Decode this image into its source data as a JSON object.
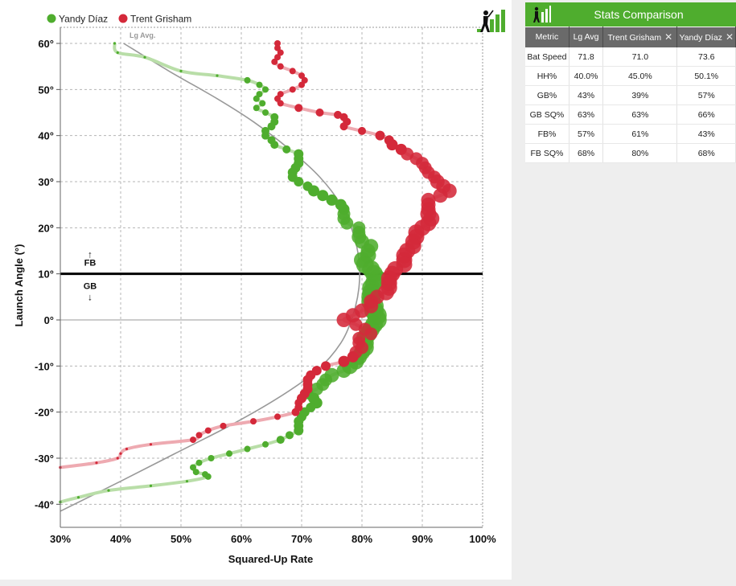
{
  "chart_data": {
    "type": "scatter",
    "title": "",
    "xlabel": "Squared-Up Rate",
    "ylabel": "Launch Angle (°)",
    "xlim": [
      30,
      100
    ],
    "ylim": [
      -45,
      60
    ],
    "x_ticks": [
      "30%",
      "40%",
      "50%",
      "60%",
      "70%",
      "80%",
      "90%",
      "100%"
    ],
    "y_ticks": [
      "60°",
      "50°",
      "40°",
      "30°",
      "20°",
      "10°",
      "0°",
      "-10°",
      "-20°",
      "-30°",
      "-40°"
    ],
    "grid": true,
    "legend_position": "top-left",
    "reference_line": {
      "y": 10,
      "above_label": "FB",
      "below_label": "GB",
      "up_arrow": "↑",
      "down_arrow": "↓"
    },
    "lg_avg": {
      "name": "Lg Avg.",
      "points": [
        [
          40.5,
          60
        ],
        [
          48,
          54
        ],
        [
          56,
          48
        ],
        [
          62,
          43
        ],
        [
          68,
          37
        ],
        [
          73,
          31
        ],
        [
          76.5,
          25
        ],
        [
          78.5,
          19
        ],
        [
          79.5,
          13
        ],
        [
          79.5,
          7
        ],
        [
          78.5,
          1
        ],
        [
          76.5,
          -5
        ],
        [
          72.5,
          -11
        ],
        [
          66,
          -17
        ],
        [
          58,
          -23
        ],
        [
          49,
          -29
        ],
        [
          40,
          -35
        ],
        [
          30,
          -41.5
        ]
      ]
    },
    "series": [
      {
        "name": "Yandy Díaz",
        "color": "#4fad2e",
        "light": "#b9dea8",
        "points": [
          [
            39,
            60,
            2
          ],
          [
            39.5,
            58,
            2
          ],
          [
            44,
            57,
            2
          ],
          [
            50,
            54,
            2
          ],
          [
            56,
            53,
            2
          ],
          [
            61,
            52,
            3
          ],
          [
            63,
            51,
            3
          ],
          [
            64,
            50,
            3
          ],
          [
            63,
            49,
            3
          ],
          [
            62.5,
            48,
            3
          ],
          [
            63.5,
            47,
            3
          ],
          [
            62.5,
            46,
            3
          ],
          [
            64,
            45,
            3
          ],
          [
            65.5,
            44,
            4
          ],
          [
            65.5,
            43,
            4
          ],
          [
            65,
            42,
            4
          ],
          [
            64,
            41,
            4
          ],
          [
            64,
            40,
            4
          ],
          [
            65,
            39,
            4
          ],
          [
            65.5,
            38,
            4
          ],
          [
            67.5,
            37,
            4
          ],
          [
            69.5,
            36,
            5
          ],
          [
            69.5,
            35,
            5
          ],
          [
            69.5,
            34,
            5
          ],
          [
            69,
            33,
            5
          ],
          [
            68.5,
            32,
            5
          ],
          [
            68.5,
            31,
            5
          ],
          [
            69.5,
            30,
            5
          ],
          [
            71,
            29,
            5
          ],
          [
            72,
            28,
            6
          ],
          [
            73.5,
            27,
            6
          ],
          [
            75,
            26,
            6
          ],
          [
            76.5,
            25,
            6
          ],
          [
            77,
            24,
            6
          ],
          [
            77,
            23,
            7
          ],
          [
            77,
            22,
            7
          ],
          [
            77.5,
            21,
            7
          ],
          [
            79.5,
            20,
            7
          ],
          [
            79.5,
            19,
            7
          ],
          [
            79.5,
            18,
            8
          ],
          [
            80,
            17,
            8
          ],
          [
            81.5,
            16,
            8
          ],
          [
            81,
            15,
            8
          ],
          [
            81,
            14,
            9
          ],
          [
            80,
            13,
            9
          ],
          [
            80.5,
            12,
            10
          ],
          [
            81.5,
            11,
            10
          ],
          [
            82,
            10,
            10
          ],
          [
            82.5,
            9,
            10
          ],
          [
            82,
            8,
            10
          ],
          [
            81.5,
            7,
            10
          ],
          [
            81.5,
            6,
            10
          ],
          [
            81.5,
            5,
            11
          ],
          [
            81.5,
            4,
            11
          ],
          [
            82,
            3,
            11
          ],
          [
            82,
            2,
            11
          ],
          [
            82.5,
            1,
            11
          ],
          [
            82.5,
            0,
            11
          ],
          [
            82,
            -1,
            10
          ],
          [
            81.5,
            -2,
            10
          ],
          [
            81,
            -3,
            10
          ],
          [
            80.5,
            -4,
            10
          ],
          [
            80.5,
            -5,
            10
          ],
          [
            80.5,
            -6,
            10
          ],
          [
            80,
            -7,
            9
          ],
          [
            79.5,
            -8,
            9
          ],
          [
            79,
            -9,
            9
          ],
          [
            78,
            -10,
            9
          ],
          [
            77,
            -11,
            8
          ],
          [
            75,
            -12,
            8
          ],
          [
            74,
            -13,
            7
          ],
          [
            73.5,
            -14,
            7
          ],
          [
            72.5,
            -15,
            7
          ],
          [
            71,
            -16,
            6
          ],
          [
            72,
            -17,
            6
          ],
          [
            72.5,
            -18,
            6
          ],
          [
            71.5,
            -19,
            5
          ],
          [
            70.5,
            -20,
            5
          ],
          [
            70,
            -21,
            5
          ],
          [
            69.5,
            -22,
            5
          ],
          [
            69.5,
            -23,
            5
          ],
          [
            69.5,
            -24,
            5
          ],
          [
            68,
            -25,
            4
          ],
          [
            66.5,
            -26,
            4
          ],
          [
            64,
            -27,
            3
          ],
          [
            61,
            -28,
            3
          ],
          [
            58,
            -29,
            3
          ],
          [
            55,
            -30,
            3
          ],
          [
            53,
            -31,
            3
          ],
          [
            52,
            -32,
            3
          ],
          [
            52.5,
            -33,
            3
          ],
          [
            54,
            -33.5,
            3
          ],
          [
            54.5,
            -34,
            3
          ],
          [
            51,
            -35,
            2
          ],
          [
            45,
            -36,
            2
          ],
          [
            38,
            -37,
            2
          ],
          [
            33,
            -38.5,
            2
          ],
          [
            30,
            -39.5,
            2
          ]
        ]
      },
      {
        "name": "Trent Grisham",
        "color": "#d4293a",
        "light": "#eeaab1",
        "points": [
          [
            66,
            60,
            3
          ],
          [
            66,
            59,
            3
          ],
          [
            66.5,
            58,
            3
          ],
          [
            66,
            57,
            3
          ],
          [
            65.5,
            56,
            3
          ],
          [
            66.5,
            55,
            3
          ],
          [
            68.5,
            54,
            3
          ],
          [
            70,
            53,
            3
          ],
          [
            70.5,
            52,
            3
          ],
          [
            70,
            51,
            3
          ],
          [
            68.5,
            50,
            3
          ],
          [
            66.5,
            49,
            3
          ],
          [
            66,
            48,
            3
          ],
          [
            66.5,
            47,
            3
          ],
          [
            69.5,
            46,
            4
          ],
          [
            73,
            45,
            4
          ],
          [
            76,
            44.5,
            4
          ],
          [
            77,
            44,
            4
          ],
          [
            77.5,
            43,
            4
          ],
          [
            77,
            42,
            4
          ],
          [
            80,
            41,
            4
          ],
          [
            83,
            40,
            5
          ],
          [
            84.5,
            39,
            5
          ],
          [
            85,
            38,
            6
          ],
          [
            86.5,
            37,
            6
          ],
          [
            87.5,
            36,
            7
          ],
          [
            89,
            35,
            7
          ],
          [
            90,
            34,
            7
          ],
          [
            90.5,
            33,
            7
          ],
          [
            91,
            32,
            7
          ],
          [
            92,
            31,
            7
          ],
          [
            92.5,
            30,
            8
          ],
          [
            93.5,
            29,
            8
          ],
          [
            94.5,
            28,
            8
          ],
          [
            93,
            27,
            8
          ],
          [
            91,
            26,
            8
          ],
          [
            91,
            25,
            8
          ],
          [
            91,
            24,
            8
          ],
          [
            91,
            23,
            9
          ],
          [
            91.5,
            22,
            9
          ],
          [
            91,
            21,
            9
          ],
          [
            90,
            20,
            9
          ],
          [
            89,
            19,
            9
          ],
          [
            89,
            18,
            9
          ],
          [
            88.5,
            17,
            9
          ],
          [
            88.5,
            16,
            9
          ],
          [
            87.5,
            15,
            9
          ],
          [
            87,
            14,
            9
          ],
          [
            87,
            13,
            9
          ],
          [
            87,
            12,
            9
          ],
          [
            85.5,
            11,
            9
          ],
          [
            85,
            10,
            9
          ],
          [
            84.5,
            9,
            9
          ],
          [
            84.5,
            8,
            9
          ],
          [
            84.5,
            7,
            9
          ],
          [
            84,
            6,
            9
          ],
          [
            82.5,
            5,
            8
          ],
          [
            81.5,
            4,
            8
          ],
          [
            81.5,
            3,
            8
          ],
          [
            80,
            2,
            8
          ],
          [
            78.5,
            1,
            8
          ],
          [
            77,
            0,
            8
          ],
          [
            79,
            -1,
            7
          ],
          [
            80.5,
            -2,
            7
          ],
          [
            81.5,
            -3,
            7
          ],
          [
            79.5,
            -4,
            7
          ],
          [
            79.5,
            -5,
            7
          ],
          [
            80,
            -6,
            7
          ],
          [
            79,
            -7,
            7
          ],
          [
            78.5,
            -8,
            6
          ],
          [
            77,
            -9,
            6
          ],
          [
            74,
            -10,
            5
          ],
          [
            72.5,
            -11,
            5
          ],
          [
            71.5,
            -12,
            5
          ],
          [
            71,
            -13,
            5
          ],
          [
            71,
            -14,
            5
          ],
          [
            71,
            -15,
            5
          ],
          [
            70.5,
            -16,
            5
          ],
          [
            70,
            -17,
            5
          ],
          [
            69.5,
            -18,
            4
          ],
          [
            69.5,
            -19,
            4
          ],
          [
            69,
            -20,
            4
          ],
          [
            66,
            -21,
            3
          ],
          [
            62,
            -22,
            3
          ],
          [
            57,
            -23,
            3
          ],
          [
            54.5,
            -24,
            3
          ],
          [
            53,
            -25,
            3
          ],
          [
            52,
            -26,
            3
          ],
          [
            45,
            -27,
            2
          ],
          [
            41,
            -28,
            2
          ],
          [
            40,
            -29,
            2
          ],
          [
            39.5,
            -30,
            2
          ],
          [
            36,
            -31,
            2
          ],
          [
            30,
            -32,
            2
          ]
        ]
      }
    ]
  },
  "panel": {
    "title": "Stats Comparison",
    "headers": [
      "Metric",
      "Lg Avg",
      "Trent Grisham",
      "Yandy Díaz"
    ],
    "close_glyph": "✕",
    "rows": [
      [
        "Bat Speed",
        "71.8",
        "71.0",
        "73.6"
      ],
      [
        "HH%",
        "40.0%",
        "45.0%",
        "50.1%"
      ],
      [
        "GB%",
        "43%",
        "39%",
        "57%"
      ],
      [
        "GB SQ%",
        "63%",
        "63%",
        "66%"
      ],
      [
        "FB%",
        "57%",
        "61%",
        "43%"
      ],
      [
        "FB SQ%",
        "68%",
        "80%",
        "68%"
      ]
    ]
  },
  "icons": {
    "chart_logo": "batter-bars-icon",
    "panel_logo": "batter-bars-icon"
  }
}
